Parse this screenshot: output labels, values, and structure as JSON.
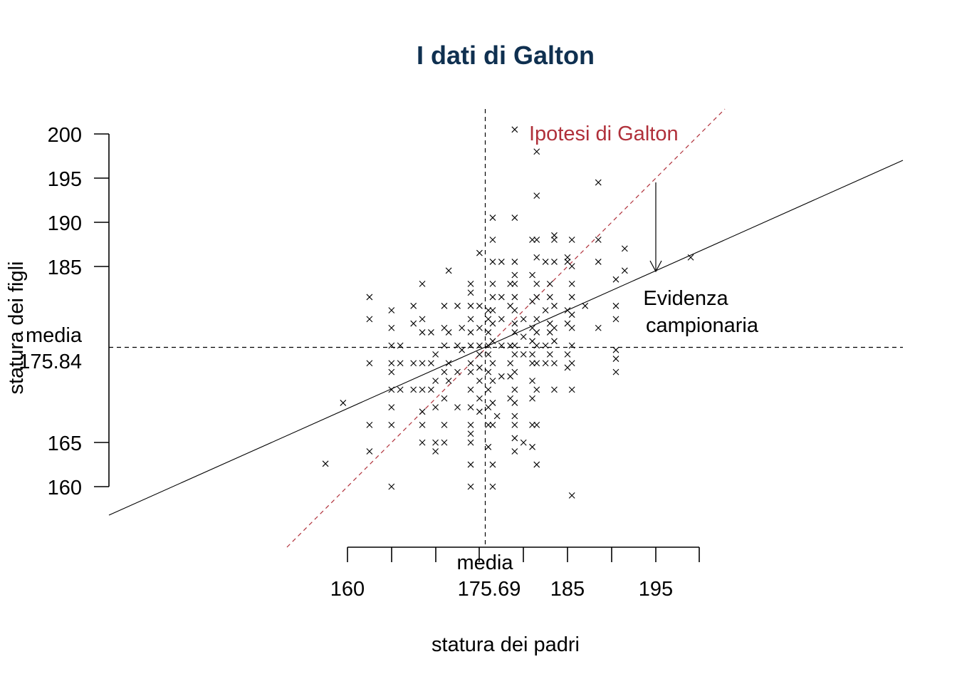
{
  "chart_data": {
    "type": "scatter",
    "title": "I dati di Galton",
    "xlabel": "statura dei padri",
    "ylabel": "statura dei figli",
    "x_ticks": [
      "160",
      "185",
      "195"
    ],
    "y_ticks": [
      "160",
      "165",
      "185",
      "190",
      "195",
      "200"
    ],
    "x_mean": {
      "label": "media",
      "value_text": "175.69",
      "value": 175.69
    },
    "y_mean": {
      "label": "media",
      "value_text": "175.84",
      "value": 175.84
    },
    "galton_line_label": "Ipotesi di Galton",
    "evidence_label": [
      "Evidenza",
      "campionaria"
    ],
    "colors": {
      "title": "#0f3050",
      "galton": "#b0303a",
      "points": "#000000"
    },
    "regression": {
      "intercept": 87.5,
      "slope": 0.5028
    },
    "galton_line": {
      "intercept": 0,
      "slope": 1
    },
    "points": [
      [
        157.5,
        162.6
      ],
      [
        159.5,
        169.5
      ],
      [
        162.5,
        181.5
      ],
      [
        162.5,
        179.0
      ],
      [
        162.5,
        174.0
      ],
      [
        162.5,
        167.0
      ],
      [
        162.5,
        164.0
      ],
      [
        165,
        180.0
      ],
      [
        165,
        178.0
      ],
      [
        165,
        176.0
      ],
      [
        165,
        174.0
      ],
      [
        165,
        173.0
      ],
      [
        165,
        171.0
      ],
      [
        165,
        169.0
      ],
      [
        165,
        167.0
      ],
      [
        165,
        160.0
      ],
      [
        166,
        176.0
      ],
      [
        166,
        174.0
      ],
      [
        166,
        171.0
      ],
      [
        167.5,
        180.5
      ],
      [
        167.5,
        178.5
      ],
      [
        167.5,
        174.0
      ],
      [
        167.5,
        171.0
      ],
      [
        168.5,
        183.0
      ],
      [
        168.5,
        179.0
      ],
      [
        168.5,
        177.5
      ],
      [
        168.5,
        174.0
      ],
      [
        168.5,
        171.0
      ],
      [
        168.5,
        168.5
      ],
      [
        168.5,
        167.0
      ],
      [
        168.5,
        165.0
      ],
      [
        169.5,
        177.5
      ],
      [
        169.5,
        174.0
      ],
      [
        169.5,
        171.0
      ],
      [
        170,
        175.0
      ],
      [
        170,
        172.0
      ],
      [
        170,
        169.0
      ],
      [
        170,
        165.0
      ],
      [
        170,
        164.0
      ],
      [
        171,
        180.5
      ],
      [
        171,
        178.0
      ],
      [
        171,
        176.0
      ],
      [
        171,
        173.0
      ],
      [
        171,
        170.0
      ],
      [
        171,
        167.0
      ],
      [
        171,
        165.0
      ],
      [
        171.5,
        184.5
      ],
      [
        171.5,
        177.5
      ],
      [
        171.5,
        174.0
      ],
      [
        171.5,
        172.0
      ],
      [
        172.5,
        180.5
      ],
      [
        172.5,
        176.0
      ],
      [
        172.5,
        173.0
      ],
      [
        172.5,
        169.0
      ],
      [
        173,
        178.0
      ],
      [
        173,
        175.5
      ],
      [
        174,
        183.0
      ],
      [
        174,
        182.0
      ],
      [
        174,
        180.5
      ],
      [
        174,
        179.0
      ],
      [
        174,
        177.5
      ],
      [
        174,
        176.0
      ],
      [
        174,
        174.0
      ],
      [
        174,
        173.0
      ],
      [
        174,
        171.0
      ],
      [
        174,
        169.0
      ],
      [
        174,
        167.0
      ],
      [
        174,
        166.0
      ],
      [
        174,
        165.0
      ],
      [
        174,
        162.5
      ],
      [
        174,
        160.0
      ],
      [
        175,
        186.5
      ],
      [
        175,
        180.5
      ],
      [
        175,
        178.0
      ],
      [
        175,
        176.0
      ],
      [
        175,
        175.0
      ],
      [
        175,
        173.5
      ],
      [
        175,
        172.0
      ],
      [
        175,
        170.0
      ],
      [
        175,
        168.5
      ],
      [
        176,
        180.0
      ],
      [
        176,
        179.0
      ],
      [
        176,
        177.5
      ],
      [
        176,
        176.0
      ],
      [
        176,
        175.0
      ],
      [
        176,
        173.0
      ],
      [
        176,
        171.0
      ],
      [
        176,
        169.0
      ],
      [
        176,
        167.0
      ],
      [
        176,
        164.5
      ],
      [
        176.5,
        190.5
      ],
      [
        176.5,
        188.0
      ],
      [
        176.5,
        185.5
      ],
      [
        176.5,
        183.0
      ],
      [
        176.5,
        181.5
      ],
      [
        176.5,
        180.0
      ],
      [
        176.5,
        178.5
      ],
      [
        176.5,
        176.5
      ],
      [
        176.5,
        174.0
      ],
      [
        176.5,
        172.0
      ],
      [
        176.5,
        169.5
      ],
      [
        176.5,
        167.0
      ],
      [
        176.5,
        162.5
      ],
      [
        176.5,
        160.0
      ],
      [
        177,
        168.0
      ],
      [
        177.5,
        185.5
      ],
      [
        177.5,
        181.5
      ],
      [
        177.5,
        179.0
      ],
      [
        177.5,
        176.0
      ],
      [
        177.5,
        172.5
      ],
      [
        178.5,
        183.0
      ],
      [
        178.5,
        180.5
      ],
      [
        178.5,
        176.0
      ],
      [
        178.5,
        174.0
      ],
      [
        178.5,
        172.5
      ],
      [
        178.5,
        170.0
      ],
      [
        179,
        200.5
      ],
      [
        179,
        190.5
      ],
      [
        179,
        185.5
      ],
      [
        179,
        184.0
      ],
      [
        179,
        183.0
      ],
      [
        179,
        181.5
      ],
      [
        179,
        180.0
      ],
      [
        179,
        178.5
      ],
      [
        179,
        177.5
      ],
      [
        179,
        176.0
      ],
      [
        179,
        175.0
      ],
      [
        179,
        173.0
      ],
      [
        179,
        171.0
      ],
      [
        179,
        169.5
      ],
      [
        179,
        168.0
      ],
      [
        179,
        167.0
      ],
      [
        179,
        165.5
      ],
      [
        179,
        164.0
      ],
      [
        180,
        179.0
      ],
      [
        180,
        177.0
      ],
      [
        180,
        175.0
      ],
      [
        180,
        165.0
      ],
      [
        181,
        188.0
      ],
      [
        181,
        184.0
      ],
      [
        181,
        181.0
      ],
      [
        181,
        178.0
      ],
      [
        181,
        176.5
      ],
      [
        181,
        175.0
      ],
      [
        181,
        174.0
      ],
      [
        181,
        172.0
      ],
      [
        181,
        170.0
      ],
      [
        181,
        167.0
      ],
      [
        181,
        164.5
      ],
      [
        181.5,
        198.0
      ],
      [
        181.5,
        193.0
      ],
      [
        181.5,
        188.0
      ],
      [
        181.5,
        186.0
      ],
      [
        181.5,
        183.0
      ],
      [
        181.5,
        181.5
      ],
      [
        181.5,
        179.0
      ],
      [
        181.5,
        177.5
      ],
      [
        181.5,
        176.0
      ],
      [
        181.5,
        174.0
      ],
      [
        181.5,
        171.0
      ],
      [
        181.5,
        167.0
      ],
      [
        181.5,
        162.5
      ],
      [
        182.5,
        185.5
      ],
      [
        182.5,
        180.0
      ],
      [
        182.5,
        176.0
      ],
      [
        182.5,
        174.0
      ],
      [
        183,
        183.0
      ],
      [
        183,
        181.5
      ],
      [
        183,
        178.5
      ],
      [
        183,
        177.5
      ],
      [
        183,
        175.0
      ],
      [
        183.5,
        188.5
      ],
      [
        183.5,
        188.0
      ],
      [
        183.5,
        185.5
      ],
      [
        183.5,
        180.5
      ],
      [
        183.5,
        178.0
      ],
      [
        183.5,
        176.5
      ],
      [
        183.5,
        174.0
      ],
      [
        183.5,
        171.0
      ],
      [
        185,
        186.0
      ],
      [
        185,
        185.5
      ],
      [
        185,
        180.0
      ],
      [
        185,
        178.5
      ],
      [
        185,
        175.0
      ],
      [
        185,
        173.5
      ],
      [
        185.5,
        188.0
      ],
      [
        185.5,
        185.0
      ],
      [
        185.5,
        183.0
      ],
      [
        185.5,
        181.5
      ],
      [
        185.5,
        179.5
      ],
      [
        185.5,
        178.0
      ],
      [
        185.5,
        176.0
      ],
      [
        185.5,
        174.0
      ],
      [
        185.5,
        171.0
      ],
      [
        185.5,
        159.0
      ],
      [
        187,
        180.5
      ],
      [
        188.5,
        194.5
      ],
      [
        188.5,
        188.0
      ],
      [
        188.5,
        185.5
      ],
      [
        188.5,
        178.0
      ],
      [
        190.5,
        183.5
      ],
      [
        190.5,
        180.5
      ],
      [
        190.5,
        179.0
      ],
      [
        190.5,
        175.5
      ],
      [
        190.5,
        174.5
      ],
      [
        190.5,
        173.0
      ],
      [
        191.5,
        187.0
      ],
      [
        191.5,
        184.5
      ],
      [
        199,
        186.0
      ]
    ]
  }
}
